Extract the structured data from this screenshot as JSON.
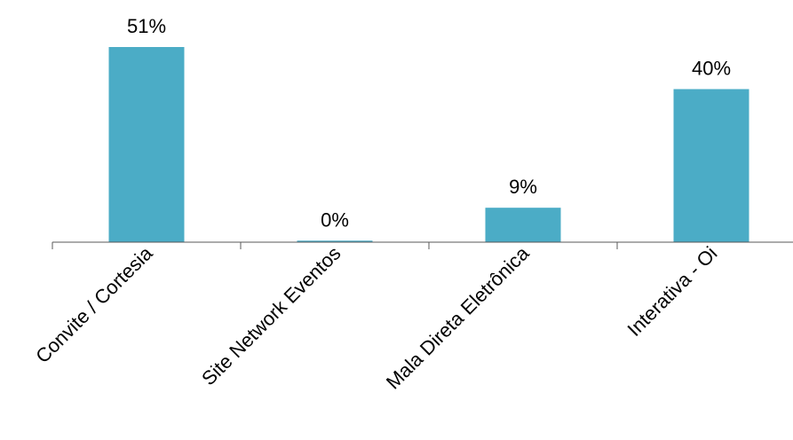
{
  "chart_data": {
    "type": "bar",
    "categories": [
      "Convite / Cortesia",
      "Site Network Eventos",
      "Mala Direta Eletrônica",
      "Interativa - Oi"
    ],
    "values": [
      51,
      0.4,
      9,
      40
    ],
    "value_labels": [
      "51%",
      "0%",
      "9%",
      "40%"
    ],
    "title": "",
    "xlabel": "",
    "ylabel": "",
    "ylim": [
      0,
      51
    ],
    "grid": false,
    "legend": "none",
    "colors": {
      "bar": "#4bacc6",
      "axis": "#595959",
      "text": "#000000"
    }
  }
}
